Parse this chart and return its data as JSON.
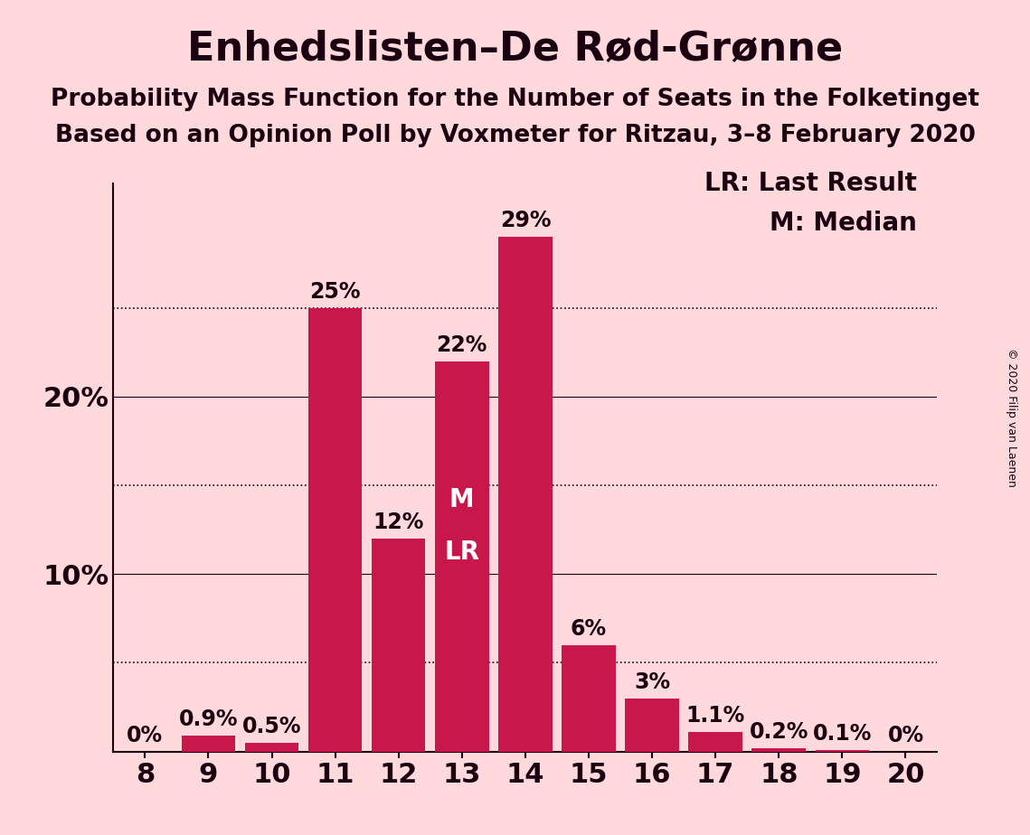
{
  "title": "Enhedslisten–De Rød-Grønne",
  "subtitle1": "Probability Mass Function for the Number of Seats in the Folketinget",
  "subtitle2": "Based on an Opinion Poll by Voxmeter for Ritzau, 3–8 February 2020",
  "copyright": "© 2020 Filip van Laenen",
  "seats": [
    8,
    9,
    10,
    11,
    12,
    13,
    14,
    15,
    16,
    17,
    18,
    19,
    20
  ],
  "probabilities": [
    0.0,
    0.9,
    0.5,
    25.0,
    12.0,
    22.0,
    29.0,
    6.0,
    3.0,
    1.1,
    0.2,
    0.1,
    0.0
  ],
  "labels": [
    "0%",
    "0.9%",
    "0.5%",
    "25%",
    "12%",
    "22%",
    "29%",
    "6%",
    "3%",
    "1.1%",
    "0.2%",
    "0.1%",
    "0%"
  ],
  "bar_color": "#C8174B",
  "background_color": "#FFD9DC",
  "text_color": "#1a0010",
  "median_seat": 13,
  "last_result_seat": 13,
  "legend_lr": "LR: Last Result",
  "legend_m": "M: Median",
  "solid_grid": [
    10,
    20
  ],
  "dotted_grid": [
    5,
    15,
    25
  ],
  "ylim": [
    0,
    32
  ],
  "bar_width": 0.85,
  "title_fontsize": 32,
  "subtitle_fontsize": 19,
  "label_fontsize": 17,
  "axis_fontsize": 22,
  "legend_fontsize": 20,
  "copyright_fontsize": 9,
  "ml_fontsize": 20
}
